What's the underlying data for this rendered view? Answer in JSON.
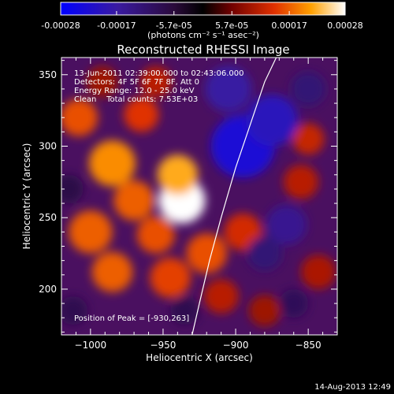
{
  "colorbar": {
    "tick_labels": [
      "-0.00028",
      "-0.00017",
      "-5.7e-05",
      "5.7e-05",
      "0.00017",
      "0.00028"
    ],
    "tick_values": [
      -0.00028,
      -0.00017,
      -5.7e-05,
      5.7e-05,
      0.00017,
      0.00028
    ],
    "range": [
      -0.00028,
      0.00028
    ],
    "units": "(photons cm⁻² s⁻¹ asec⁻²)"
  },
  "chart_data": {
    "type": "heatmap",
    "title": "Reconstructed RHESSI Image",
    "xlabel": "Heliocentric X (arcsec)",
    "ylabel": "Heliocentric Y (arcsec)",
    "xlim": [
      -1020,
      -830
    ],
    "ylim": [
      168,
      362
    ],
    "x_ticks": [
      -1000,
      -950,
      -900,
      -850
    ],
    "x_tick_labels": [
      "−1000",
      "−950",
      "−900",
      "−850"
    ],
    "y_ticks": [
      200,
      250,
      300,
      350
    ],
    "y_tick_labels": [
      "200",
      "250",
      "300",
      "350"
    ],
    "annotations": [
      "13-Jun-2011 02:39:00.000 to 02:43:06.000",
      "Detectors: 4F 5F 6F 7F 8F, Att 0",
      "Energy Range: 12.0 - 25.0 keV",
      "Clean    Total counts: 7.53E+03",
      "Position of Peak = [-930,263]"
    ],
    "peak": {
      "x": -930,
      "y": 263
    },
    "limb_curve": {
      "x": [
        -930,
        -925,
        -918,
        -910,
        -900,
        -890,
        -880,
        -872
      ],
      "y": [
        168,
        190,
        220,
        250,
        285,
        315,
        345,
        362
      ]
    },
    "blobs": [
      {
        "x": -937,
        "y": 262,
        "r": 16,
        "v": 0.00028
      },
      {
        "x": -940,
        "y": 280,
        "r": 14,
        "v": 0.00022
      },
      {
        "x": -985,
        "y": 288,
        "r": 16,
        "v": 0.0002
      },
      {
        "x": -970,
        "y": 262,
        "r": 14,
        "v": 0.00017
      },
      {
        "x": -1000,
        "y": 240,
        "r": 15,
        "v": 0.00017
      },
      {
        "x": -985,
        "y": 212,
        "r": 14,
        "v": 0.00017
      },
      {
        "x": -955,
        "y": 238,
        "r": 13,
        "v": 0.00016
      },
      {
        "x": -945,
        "y": 208,
        "r": 14,
        "v": 0.00015
      },
      {
        "x": -1008,
        "y": 320,
        "r": 13,
        "v": 0.00016
      },
      {
        "x": -965,
        "y": 322,
        "r": 12,
        "v": 0.00014
      },
      {
        "x": -920,
        "y": 225,
        "r": 14,
        "v": 0.00016
      },
      {
        "x": -895,
        "y": 240,
        "r": 13,
        "v": 0.00013
      },
      {
        "x": -910,
        "y": 195,
        "r": 12,
        "v": 0.00011
      },
      {
        "x": -855,
        "y": 275,
        "r": 12,
        "v": 0.00011
      },
      {
        "x": -850,
        "y": 305,
        "r": 11,
        "v": 0.00012
      },
      {
        "x": -843,
        "y": 212,
        "r": 12,
        "v": 0.0001
      },
      {
        "x": -992,
        "y": 345,
        "r": 11,
        "v": 9e-05
      },
      {
        "x": -955,
        "y": 345,
        "r": 11,
        "v": 0.00011
      },
      {
        "x": -880,
        "y": 185,
        "r": 11,
        "v": 9e-05
      },
      {
        "x": -1012,
        "y": 185,
        "r": 10,
        "v": -8e-05
      },
      {
        "x": -895,
        "y": 300,
        "r": 22,
        "v": -0.00023
      },
      {
        "x": -875,
        "y": 318,
        "r": 18,
        "v": -0.0002
      },
      {
        "x": -905,
        "y": 340,
        "r": 16,
        "v": -0.00017
      },
      {
        "x": -865,
        "y": 245,
        "r": 14,
        "v": -0.00015
      },
      {
        "x": -880,
        "y": 225,
        "r": 12,
        "v": -0.00012
      },
      {
        "x": -850,
        "y": 340,
        "r": 12,
        "v": -0.00012
      },
      {
        "x": -1015,
        "y": 270,
        "r": 10,
        "v": -7e-05
      },
      {
        "x": -935,
        "y": 185,
        "r": 10,
        "v": -8e-05
      },
      {
        "x": -860,
        "y": 190,
        "r": 10,
        "v": -9e-05
      }
    ]
  },
  "footer": {
    "timestamp": "14-Aug-2013 12:49"
  }
}
